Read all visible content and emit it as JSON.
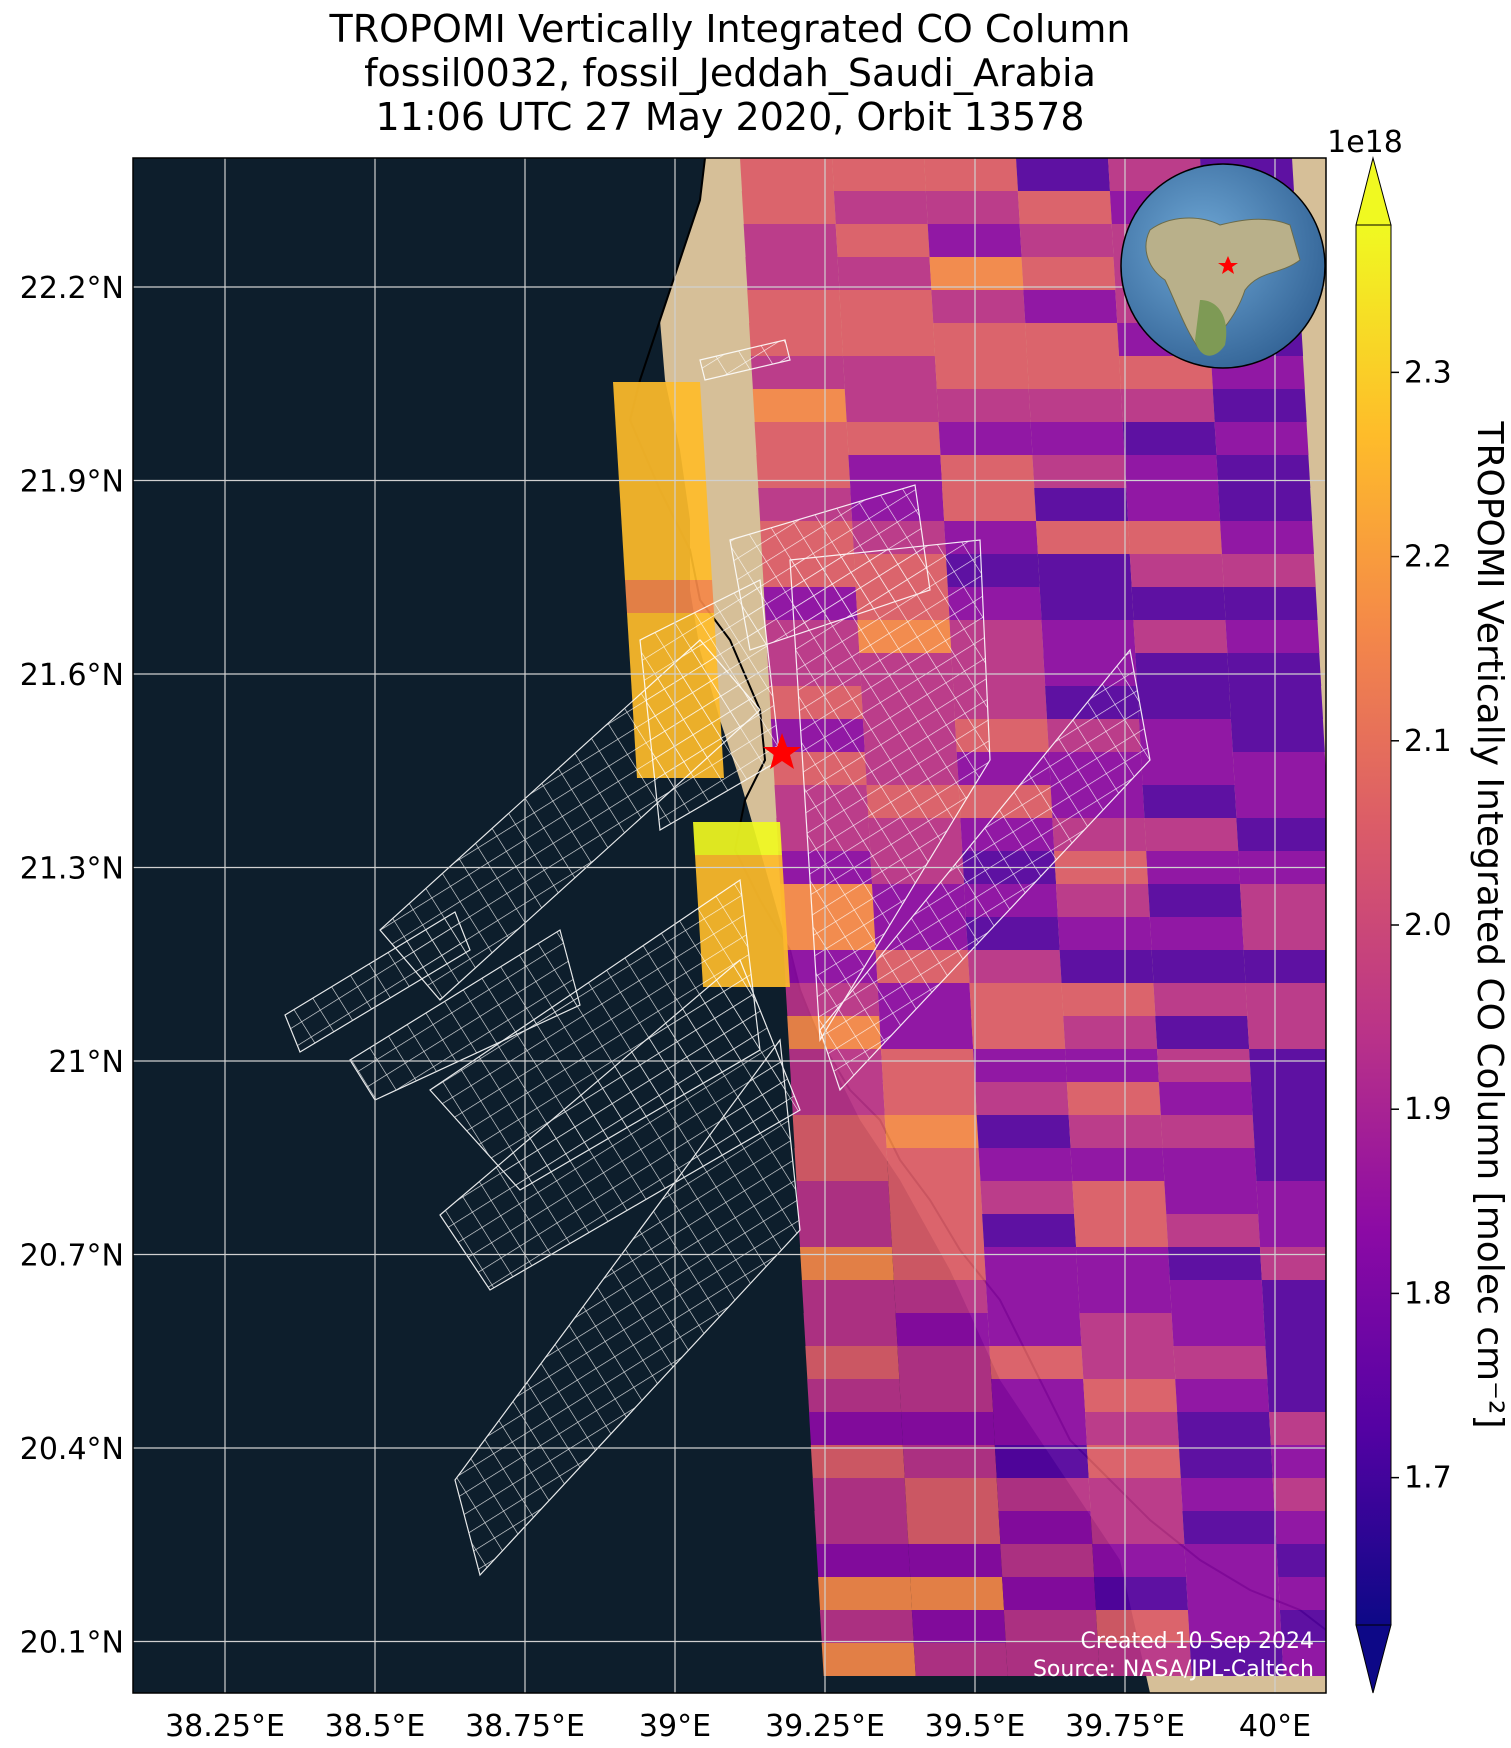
{
  "title": {
    "line1": "TROPOMI Vertically Integrated CO Column",
    "line2": "fossil0032, fossil_Jeddah_Saudi_Arabia",
    "line3": "11:06 UTC 27 May 2020, Orbit 13578"
  },
  "map": {
    "lon_ticks": [
      "38.25°E",
      "38.5°E",
      "38.75°E",
      "39°E",
      "39.25°E",
      "39.5°E",
      "39.75°E",
      "40°E"
    ],
    "lat_ticks": [
      "22.2°N",
      "21.9°N",
      "21.6°N",
      "21.3°N",
      "21°N",
      "20.7°N",
      "20.4°N",
      "20.1°N"
    ],
    "lon_values": [
      38.25,
      38.5,
      38.75,
      39.0,
      39.25,
      39.5,
      39.75,
      40.0
    ],
    "lat_values": [
      22.2,
      21.9,
      21.6,
      21.3,
      21.0,
      20.7,
      20.4,
      20.1
    ],
    "site_marker": "red-star",
    "credit_line1": "Created 10 Sep 2024",
    "credit_line2": "Source: NASA/JPL-Caltech",
    "colors": {
      "ocean": "#0d1e2c",
      "land": "#dcc4a0",
      "coast": "#000000",
      "star": "#ff0000",
      "grid": "#ffffff"
    }
  },
  "colorbar": {
    "label": "TROPOMI Vertically Integrated CO Column [molec cm⁻²]",
    "scale_label": "1e18",
    "ticks": [
      "2.3",
      "2.2",
      "2.1",
      "2.0",
      "1.9",
      "1.8",
      "1.7"
    ],
    "tick_values": [
      2.3,
      2.2,
      2.1,
      2.0,
      1.9,
      1.8,
      1.7
    ],
    "colormap": "plasma",
    "extend": "both"
  }
}
